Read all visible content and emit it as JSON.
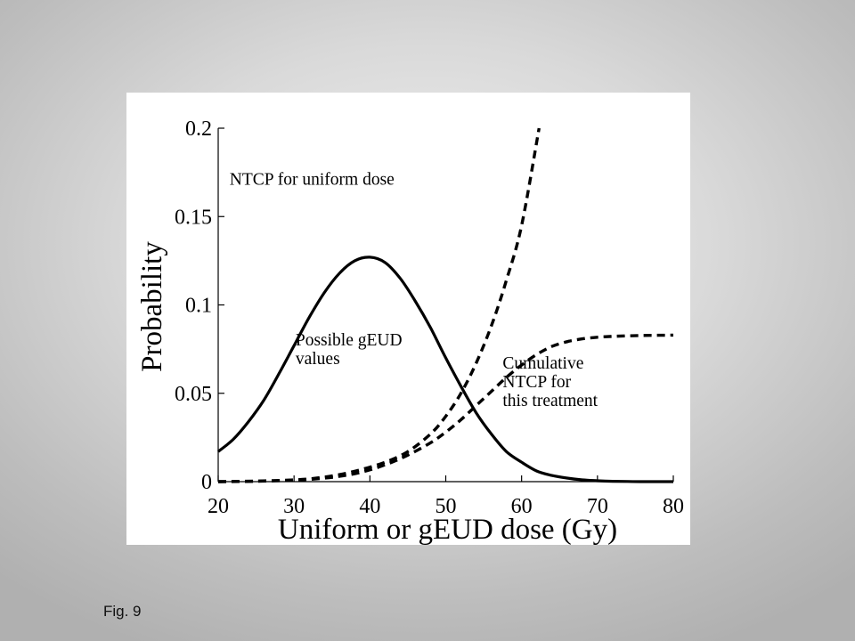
{
  "caption": "Fig. 9",
  "chart_data": {
    "type": "line",
    "xlabel": "Uniform or gEUD dose (Gy)",
    "ylabel": "Probability",
    "xlim": [
      20,
      80
    ],
    "ylim": [
      0,
      0.2
    ],
    "xticks": [
      20,
      30,
      40,
      50,
      60,
      70,
      80
    ],
    "yticks": [
      0,
      0.05,
      0.1,
      0.15,
      0.2
    ],
    "xtick_labels": [
      "20",
      "30",
      "40",
      "50",
      "60",
      "70",
      "80"
    ],
    "ytick_labels": [
      "0",
      "0.05",
      "0.1",
      "0.15",
      "0.2"
    ],
    "grid": false,
    "annotations": [
      {
        "lines": [
          "NTCP for uniform dose"
        ],
        "x": 21.5,
        "y": 0.168
      },
      {
        "lines": [
          "Possible gEUD",
          "values"
        ],
        "x": 30.2,
        "y": 0.077
      },
      {
        "lines": [
          "Cumulative",
          "NTCP for",
          "this treatment"
        ],
        "x": 57.5,
        "y": 0.064
      }
    ],
    "series": [
      {
        "style": "solid",
        "x": [
          20,
          22,
          24,
          26,
          28,
          30,
          32,
          34,
          36,
          38,
          40,
          42,
          44,
          46,
          48,
          50,
          52,
          54,
          56,
          58,
          60,
          62,
          64,
          66,
          68,
          70,
          72,
          74,
          76,
          78,
          80
        ],
        "y": [
          0.017,
          0.024,
          0.034,
          0.046,
          0.061,
          0.077,
          0.093,
          0.107,
          0.118,
          0.125,
          0.127,
          0.124,
          0.115,
          0.102,
          0.087,
          0.07,
          0.054,
          0.039,
          0.027,
          0.017,
          0.011,
          0.006,
          0.0035,
          0.002,
          0.001,
          0.0005,
          0.0002,
          0.0001,
          0.0,
          0.0,
          0.0
        ]
      },
      {
        "style": "dashed",
        "x": [
          20,
          25,
          30,
          33,
          36,
          39,
          42,
          45,
          48,
          50,
          52,
          54,
          56,
          58,
          60,
          62.3
        ],
        "y": [
          0.0,
          0.0003,
          0.001,
          0.002,
          0.004,
          0.007,
          0.011,
          0.017,
          0.027,
          0.037,
          0.05,
          0.067,
          0.088,
          0.114,
          0.145,
          0.2
        ]
      },
      {
        "style": "dashed",
        "x": [
          20,
          25,
          30,
          33,
          36,
          39,
          42,
          45,
          48,
          50,
          52,
          54,
          56,
          58,
          60,
          62,
          64,
          66,
          68,
          70,
          72,
          74,
          76,
          78,
          80
        ],
        "y": [
          0.0,
          0.0002,
          0.0008,
          0.0016,
          0.003,
          0.0055,
          0.0095,
          0.015,
          0.022,
          0.028,
          0.035,
          0.043,
          0.051,
          0.059,
          0.066,
          0.072,
          0.0765,
          0.0792,
          0.0808,
          0.0817,
          0.0822,
          0.0825,
          0.0827,
          0.0828,
          0.0829
        ]
      }
    ]
  }
}
